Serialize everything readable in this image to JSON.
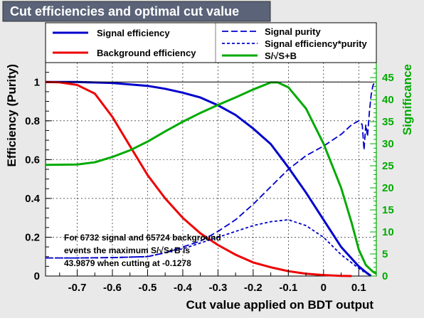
{
  "title": "Cut efficiencies and optimal cut value",
  "chart_data": {
    "type": "line",
    "xlabel": "Cut value applied on BDT output",
    "ylabel": "Efficiency (Purity)",
    "ylabel_right": "Significance",
    "xlim": [
      -0.79,
      0.15
    ],
    "ylim": [
      0,
      1.1
    ],
    "ylim_right": [
      0,
      48.4
    ],
    "x_ticks": [
      -0.7,
      -0.6,
      -0.5,
      -0.4,
      -0.3,
      -0.2,
      -0.1,
      0,
      0.1
    ],
    "x_tick_labels": [
      "-0.7",
      "-0.6",
      "-0.5",
      "-0.4",
      "-0.3",
      "-0.2",
      "-0.1",
      "0",
      "0.1"
    ],
    "y_ticks": [
      0,
      0.2,
      0.4,
      0.6,
      0.8,
      1
    ],
    "y_tick_labels": [
      "0",
      "0.2",
      "0.4",
      "0.6",
      "0.8",
      "1"
    ],
    "y_right_ticks": [
      0,
      5,
      10,
      15,
      20,
      25,
      30,
      35,
      40,
      45
    ],
    "y_right_tick_labels": [
      "0",
      "5",
      "10",
      "15",
      "20",
      "25",
      "30",
      "35",
      "40",
      "45"
    ],
    "grid": true,
    "legend": {
      "left": [
        {
          "name": "Signal efficiency",
          "color": "#0000cc",
          "style": "solid"
        },
        {
          "name": "Background efficiency",
          "color": "#ee0000",
          "style": "solid"
        }
      ],
      "right": [
        {
          "name": "Signal purity",
          "color": "#0000cc",
          "style": "longdash"
        },
        {
          "name": "Signal efficiency*purity",
          "color": "#0000cc",
          "style": "shortdash"
        },
        {
          "name": "S/√S+B",
          "color": "#00aa00",
          "style": "solid"
        }
      ]
    },
    "series": [
      {
        "name": "Signal efficiency",
        "axis": "left",
        "color": "#0000cc",
        "style": "solid",
        "x": [
          -0.79,
          -0.7,
          -0.6,
          -0.5,
          -0.45,
          -0.4,
          -0.35,
          -0.3,
          -0.25,
          -0.2,
          -0.15,
          -0.1,
          -0.05,
          0.0,
          0.05,
          0.1,
          0.12,
          0.135
        ],
        "y": [
          1.0,
          1.0,
          0.995,
          0.98,
          0.965,
          0.945,
          0.92,
          0.88,
          0.83,
          0.76,
          0.68,
          0.56,
          0.43,
          0.29,
          0.15,
          0.05,
          0.02,
          0.0
        ]
      },
      {
        "name": "Background efficiency",
        "axis": "left",
        "color": "#ee0000",
        "style": "solid",
        "x": [
          -0.79,
          -0.75,
          -0.7,
          -0.65,
          -0.6,
          -0.55,
          -0.5,
          -0.45,
          -0.4,
          -0.35,
          -0.3,
          -0.25,
          -0.2,
          -0.15,
          -0.1,
          -0.05,
          0.0,
          0.05,
          0.08
        ],
        "y": [
          1.0,
          0.998,
          0.985,
          0.94,
          0.82,
          0.67,
          0.52,
          0.4,
          0.3,
          0.22,
          0.16,
          0.11,
          0.07,
          0.045,
          0.025,
          0.012,
          0.005,
          0.001,
          0.0
        ]
      },
      {
        "name": "Signal purity",
        "axis": "left",
        "color": "#0000cc",
        "style": "longdash",
        "x": [
          -0.79,
          -0.7,
          -0.6,
          -0.5,
          -0.45,
          -0.4,
          -0.35,
          -0.3,
          -0.25,
          -0.2,
          -0.15,
          -0.1,
          -0.05,
          0.0,
          0.05,
          0.08,
          0.1,
          0.11,
          0.115,
          0.12,
          0.125,
          0.13,
          0.135,
          0.14,
          0.145
        ],
        "y": [
          0.093,
          0.093,
          0.095,
          0.1,
          0.12,
          0.15,
          0.18,
          0.23,
          0.29,
          0.37,
          0.46,
          0.55,
          0.62,
          0.67,
          0.73,
          0.78,
          0.8,
          0.78,
          0.65,
          0.78,
          0.72,
          0.84,
          0.93,
          0.98,
          1.0
        ]
      },
      {
        "name": "Signal efficiency*purity",
        "axis": "left",
        "color": "#0000cc",
        "style": "shortdash",
        "x": [
          -0.79,
          -0.7,
          -0.6,
          -0.5,
          -0.4,
          -0.3,
          -0.2,
          -0.15,
          -0.1,
          -0.05,
          0.0,
          0.05,
          0.1,
          0.12,
          0.135
        ],
        "y": [
          0.093,
          0.093,
          0.095,
          0.1,
          0.14,
          0.2,
          0.26,
          0.28,
          0.29,
          0.26,
          0.2,
          0.11,
          0.04,
          0.015,
          0.0
        ]
      },
      {
        "name": "S/√S+B",
        "axis": "right",
        "color": "#00aa00",
        "style": "solid",
        "x": [
          -0.79,
          -0.7,
          -0.65,
          -0.6,
          -0.55,
          -0.5,
          -0.45,
          -0.4,
          -0.35,
          -0.3,
          -0.25,
          -0.2,
          -0.15,
          -0.13,
          -0.1,
          -0.05,
          0.0,
          0.05,
          0.08,
          0.1,
          0.12,
          0.14,
          0.15
        ],
        "y": [
          25.2,
          25.3,
          25.8,
          27.0,
          28.5,
          30.5,
          32.8,
          35.0,
          37.0,
          38.8,
          40.5,
          42.3,
          43.9,
          43.9,
          42.8,
          38.0,
          30.0,
          20.0,
          12.0,
          6.0,
          2.5,
          1.0,
          0.5
        ]
      }
    ],
    "annotation": [
      "For 6732 signal and 65724 background",
      "events the maximum S/√S+B is",
      "43.9879 when cutting at -0.1278"
    ]
  }
}
